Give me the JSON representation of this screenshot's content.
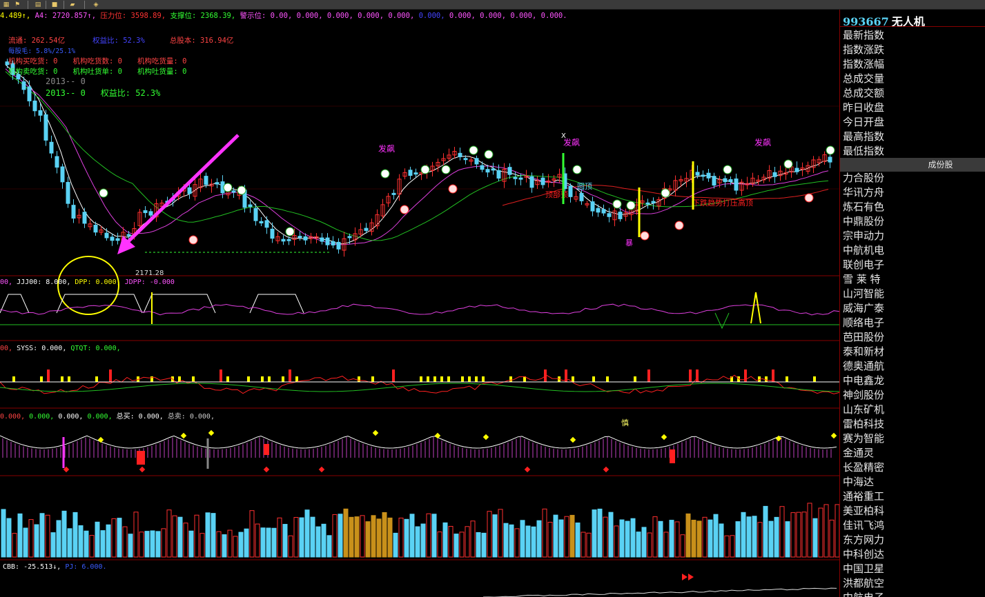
{
  "toolbar": {
    "buttons": [
      {
        "icon": "grid-icon",
        "glyph": "▦"
      },
      {
        "icon": "flag-icon",
        "glyph": "⚑"
      },
      {
        "icon": "document-icon",
        "glyph": "▤"
      },
      {
        "icon": "save-icon",
        "glyph": "■"
      },
      {
        "icon": "chart-icon",
        "glyph": "▰"
      },
      {
        "icon": "diamond-icon",
        "glyph": "◈"
      }
    ]
  },
  "header": {
    "segments": [
      {
        "text": "4.489↑, ",
        "color": "#ffff00"
      },
      {
        "text": "A4: 2720.857↑, ",
        "color": "#ff55ff"
      },
      {
        "text": "压力位: 3598.89, ",
        "color": "#ff3333"
      },
      {
        "text": "支撑位: 2368.39, ",
        "color": "#33ff33"
      },
      {
        "text": "警示位: ",
        "color": "#ff55ff"
      },
      {
        "text": "0.00, ",
        "color": "#ff55ff"
      },
      {
        "text": "0.000, 0.000, 0.000, 0.000, ",
        "color": "#ff55ff"
      },
      {
        "text": "0.000, ",
        "color": "#4444ff"
      },
      {
        "text": "0.000, 0.000, 0.000, 0.000.",
        "color": "#ff55ff"
      }
    ]
  },
  "fundamentals": {
    "row1": [
      {
        "text": "流通: 262.54亿",
        "color": "#ff4444"
      },
      {
        "text": "权益比: 52.3%",
        "color": "#4444ff"
      },
      {
        "text": "总股本: 316.94亿",
        "color": "#ff4444"
      }
    ],
    "row2": {
      "text": "每股毛: 5.8%/25.1%",
      "color": "#3a5cff"
    },
    "row3": [
      {
        "text": "机构买吃货: 0",
        "color": "#ff4444"
      },
      {
        "text": "机构吃货数: 0",
        "color": "#ff4444"
      },
      {
        "text": "机构吃货量: 0",
        "color": "#ff4444"
      }
    ],
    "row4": [
      {
        "text": "机构卖吃货: 0",
        "color": "#33ff33"
      },
      {
        "text": "机构吐货单: 0",
        "color": "#33ff33"
      },
      {
        "text": "机构吐货量: 0",
        "color": "#33ff33"
      }
    ],
    "row5": {
      "text": "2013-- 0",
      "color": "#888888"
    },
    "row6": [
      {
        "text": "2013-- 0",
        "color": "#33ff33"
      },
      {
        "text": "权益比: 52.3%",
        "color": "#33ff33"
      }
    ]
  },
  "annotations": {
    "low_price": "2171.28",
    "fafa_1": "发飙",
    "fafa_2": "发飙",
    "fafa_3": "发飙",
    "yuanding": "圆顶",
    "bao": "暴",
    "x_mark": "X",
    "red_label_1": "顶部预",
    "red_label_2": "下跌趋势打压高顶",
    "shen": "慎"
  },
  "panels": {
    "p2_label": [
      {
        "text": "00, ",
        "color": "#ff55ff"
      },
      {
        "text": "JJJ00: 8.000, ",
        "color": "#ffffff"
      },
      {
        "text": "DPP: 0.000, ",
        "color": "#ffff00"
      },
      {
        "text": "JDPP: -0.000",
        "color": "#ff55ff"
      }
    ],
    "p3_label": [
      {
        "text": "00, ",
        "color": "#ff4444"
      },
      {
        "text": "SYSS: 0.000, ",
        "color": "#ffffff"
      },
      {
        "text": "QTQT: 0.000,",
        "color": "#33ff33"
      }
    ],
    "p4_label": [
      {
        "text": "0.000, ",
        "color": "#ff4444"
      },
      {
        "text": "0.000, ",
        "color": "#33ff33"
      },
      {
        "text": "0.000, ",
        "color": "#ffffff"
      },
      {
        "text": "0.000, ",
        "color": "#33ff33"
      },
      {
        "text": "总买: 0.000, ",
        "color": "#ffffff"
      },
      {
        "text": "总卖: 0.000,",
        "color": "#cccccc"
      }
    ],
    "p6_label": [
      {
        "text": "CBB: -25.513↓, ",
        "color": "#ffffff"
      },
      {
        "text": "PJ: 6.000.",
        "color": "#3a5cff"
      }
    ]
  },
  "sidebar": {
    "code": "993667",
    "name": "无人机",
    "index_items": [
      "最新指数",
      "指数涨跌",
      "指数涨幅",
      "总成交量",
      "总成交额",
      "昨日收盘",
      "今日开盘",
      "最高指数",
      "最低指数"
    ],
    "section_header": "成份股",
    "constituents": [
      "力合股份",
      "华讯方舟",
      "炼石有色",
      "中鼎股份",
      "宗申动力",
      "中航机电",
      "联创电子",
      "雪 莱 特",
      "山河智能",
      "威海广泰",
      "顺络电子",
      "芭田股份",
      "泰和新材",
      "德奥通航",
      "中电鑫龙",
      "神剑股份",
      "山东矿机",
      "雷柏科技",
      "赛为智能",
      "金通灵",
      "长盈精密",
      "中海达",
      "通裕重工",
      "美亚柏科",
      "佳讯飞鸿",
      "东方网力",
      "中科创达",
      "中国卫星",
      "洪都航空",
      "中航电子"
    ]
  },
  "colors": {
    "up": "#ff3030",
    "down": "#5ad2f4",
    "ma_white": "#ffffff",
    "ma_magenta": "#e040e0",
    "ma_green": "#22c022",
    "ma_red": "#e02020",
    "volume_gold": "#c8901a",
    "separator": "#880000"
  }
}
